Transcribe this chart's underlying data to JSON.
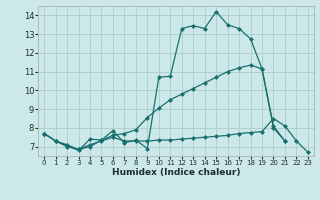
{
  "background_color": "#cde8e8",
  "grid_color": "#b0d0d0",
  "line_color": "#1a7070",
  "xlabel": "Humidex (Indice chaleur)",
  "xlim": [
    -0.5,
    23.5
  ],
  "ylim": [
    6.5,
    14.5
  ],
  "yticks": [
    7,
    8,
    9,
    10,
    11,
    12,
    13,
    14
  ],
  "xticks": [
    0,
    1,
    2,
    3,
    4,
    5,
    6,
    7,
    8,
    9,
    10,
    11,
    12,
    13,
    14,
    15,
    16,
    17,
    18,
    19,
    20,
    21,
    22,
    23
  ],
  "line1_x": [
    0,
    1,
    2,
    3,
    4,
    5,
    6,
    7,
    8,
    9,
    10,
    11,
    12,
    13,
    14,
    15,
    16,
    17,
    18,
    19,
    20,
    21
  ],
  "line1_y": [
    7.7,
    7.3,
    7.05,
    6.8,
    7.4,
    7.35,
    7.85,
    7.2,
    7.35,
    6.9,
    10.7,
    10.75,
    13.3,
    13.45,
    13.3,
    14.2,
    13.5,
    13.3,
    12.75,
    11.15,
    8.1,
    7.3
  ],
  "line2_x": [
    0,
    1,
    2,
    3,
    4,
    5,
    6,
    7,
    8,
    9,
    10,
    11,
    12,
    13,
    14,
    15,
    16,
    17,
    18,
    19,
    20,
    21
  ],
  "line2_y": [
    7.7,
    7.3,
    7.1,
    6.85,
    7.0,
    7.35,
    7.6,
    7.7,
    7.9,
    8.55,
    9.05,
    9.5,
    9.8,
    10.1,
    10.4,
    10.7,
    11.0,
    11.2,
    11.35,
    11.15,
    8.0,
    7.3
  ],
  "line3_x": [
    0,
    1,
    2,
    3,
    4,
    5,
    6,
    7,
    8,
    9,
    10,
    11,
    12,
    13,
    14,
    15,
    16,
    17,
    18,
    19,
    20,
    21,
    22,
    23
  ],
  "line3_y": [
    7.7,
    7.3,
    7.0,
    6.85,
    7.1,
    7.3,
    7.5,
    7.3,
    7.3,
    7.3,
    7.35,
    7.35,
    7.4,
    7.45,
    7.5,
    7.55,
    7.6,
    7.7,
    7.75,
    7.8,
    8.5,
    8.1,
    7.3,
    6.7
  ]
}
